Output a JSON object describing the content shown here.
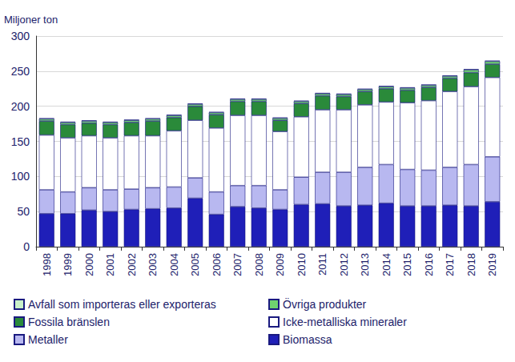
{
  "chart_data": {
    "type": "bar",
    "stacked": true,
    "ylabel": "Miljoner ton",
    "categories": [
      "1998",
      "1999",
      "2000",
      "2001",
      "2002",
      "2003",
      "2004",
      "2005",
      "2006",
      "2007",
      "2008",
      "2009",
      "2010",
      "2011",
      "2012",
      "2013",
      "2014",
      "2015",
      "2016",
      "2017",
      "2018",
      "2019"
    ],
    "ylim": [
      0,
      300
    ],
    "yticks": [
      0,
      50,
      100,
      150,
      200,
      250,
      300
    ],
    "grid": true,
    "legend": "bottom",
    "series": [
      {
        "name": "Biomassa",
        "color": "#1f1fb8",
        "values": [
          47,
          47,
          52,
          50,
          53,
          54,
          55,
          69,
          46,
          57,
          55,
          53,
          60,
          61,
          58,
          59,
          62,
          58,
          58,
          59,
          58,
          64
        ]
      },
      {
        "name": "Metaller",
        "color": "#b8b8f0",
        "values": [
          34,
          31,
          32,
          31,
          29,
          30,
          30,
          29,
          32,
          30,
          32,
          28,
          39,
          45,
          48,
          54,
          55,
          52,
          51,
          54,
          59,
          64
        ]
      },
      {
        "name": "Icke-metalliska mineraler",
        "color": "#ffffff",
        "values": [
          78,
          77,
          74,
          74,
          76,
          74,
          80,
          82,
          91,
          100,
          100,
          83,
          86,
          89,
          89,
          89,
          89,
          95,
          99,
          108,
          111,
          113
        ]
      },
      {
        "name": "Fossila bränslen",
        "color": "#2a8a3a",
        "values": [
          20,
          19,
          18,
          19,
          19,
          21,
          19,
          20,
          19,
          20,
          20,
          16,
          19,
          20,
          19,
          19,
          19,
          18,
          19,
          19,
          20,
          19
        ]
      },
      {
        "name": "Övriga produkter",
        "color": "#6fd36f",
        "values": [
          3,
          3,
          3,
          3,
          3,
          3,
          3,
          3,
          3,
          3,
          3,
          3,
          3,
          3,
          3,
          3,
          3,
          3,
          3,
          3,
          4,
          4
        ]
      },
      {
        "name": "Avfall som importeras eller exporteras",
        "color": "#c9f0c9",
        "values": [
          1,
          1,
          1,
          1,
          1,
          1,
          1,
          1,
          1,
          1,
          1,
          1,
          1,
          1,
          1,
          1,
          1,
          1,
          1,
          1,
          1,
          1
        ]
      }
    ]
  }
}
